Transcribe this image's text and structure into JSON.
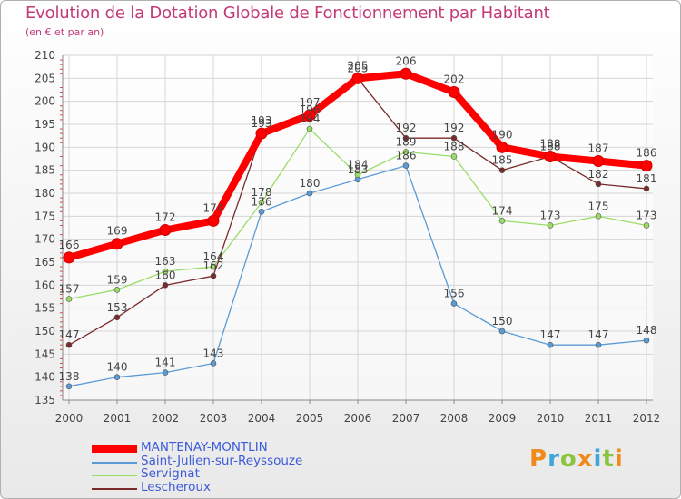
{
  "chart_data": {
    "type": "line",
    "title": "Evolution de la Dotation Globale de Fonctionnement par Habitant",
    "subtitle": "(en € et par an)",
    "xlabel": "",
    "ylabel": "",
    "x": [
      "2000",
      "2001",
      "2002",
      "2003",
      "2004",
      "2005",
      "2006",
      "2007",
      "2008",
      "2009",
      "2010",
      "2011",
      "2012"
    ],
    "ylim": [
      135,
      210
    ],
    "yticks": [
      135,
      140,
      145,
      150,
      155,
      160,
      165,
      170,
      175,
      180,
      185,
      190,
      195,
      200,
      205,
      210
    ],
    "grid": true,
    "legend_position": "bottom-left",
    "series": [
      {
        "name": "MANTENAY-MONTLIN",
        "color": "#ff0000",
        "values": [
          166,
          169,
          172,
          174,
          193,
          197,
          205,
          206,
          202,
          190,
          188,
          187,
          186
        ]
      },
      {
        "name": "Saint-Julien-sur-Reyssouze",
        "color": "#5b9bd5",
        "values": [
          138,
          140,
          141,
          143,
          176,
          180,
          183,
          186,
          156,
          150,
          147,
          147,
          148
        ]
      },
      {
        "name": "Servignat",
        "color": "#99dd66",
        "values": [
          157,
          159,
          163,
          164,
          178,
          194,
          184,
          189,
          188,
          174,
          173,
          175,
          173
        ]
      },
      {
        "name": "Lescheroux",
        "color": "#7a2a2a",
        "values": [
          147,
          153,
          160,
          162,
          193,
          196,
          205,
          192,
          192,
          185,
          188,
          182,
          181
        ]
      }
    ]
  },
  "logo": {
    "text": "Proxiti",
    "colors": [
      "#f08a1c",
      "#3fa7d8",
      "#8bc53f",
      "#f08a1c",
      "#3fa7d8",
      "#8bc53f",
      "#f08a1c"
    ]
  }
}
